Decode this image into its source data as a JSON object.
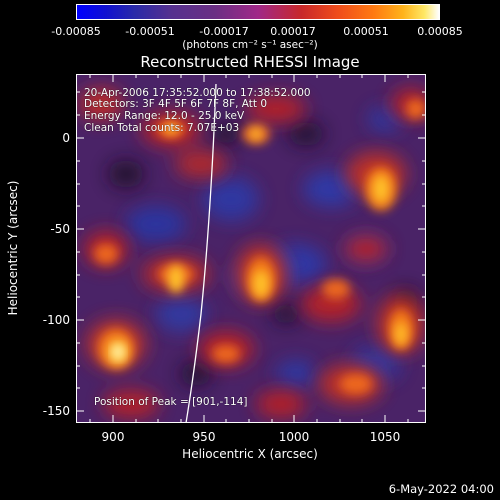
{
  "colorbar": {
    "ticks": [
      "-0.00085",
      "-0.00051",
      "-0.00017",
      "0.00017",
      "0.00051",
      "0.00085"
    ],
    "units": "(photons cm⁻² s⁻¹ asec⁻²)"
  },
  "plot": {
    "title": "Reconstructed RHESSI Image",
    "xlabel": "Heliocentric X (arcsec)",
    "ylabel": "Heliocentric Y (arcsec)",
    "xticks": [
      "900",
      "950",
      "1000",
      "1050"
    ],
    "yticks": [
      "0",
      "-50",
      "-100",
      "-150"
    ],
    "annotations": {
      "time": "20-Apr-2006 17:35:52.000 to 17:38:52.000",
      "detectors": "Detectors: 3F 4F 5F 6F 7F 8F, Att 0",
      "energy": "Energy Range: 12.0 - 25.0 keV",
      "clean": "Clean     Total counts: 7.07E+03",
      "peak": "Position of Peak = [901,-114]"
    }
  },
  "footer": {
    "date": "6-May-2022 04:00"
  }
}
